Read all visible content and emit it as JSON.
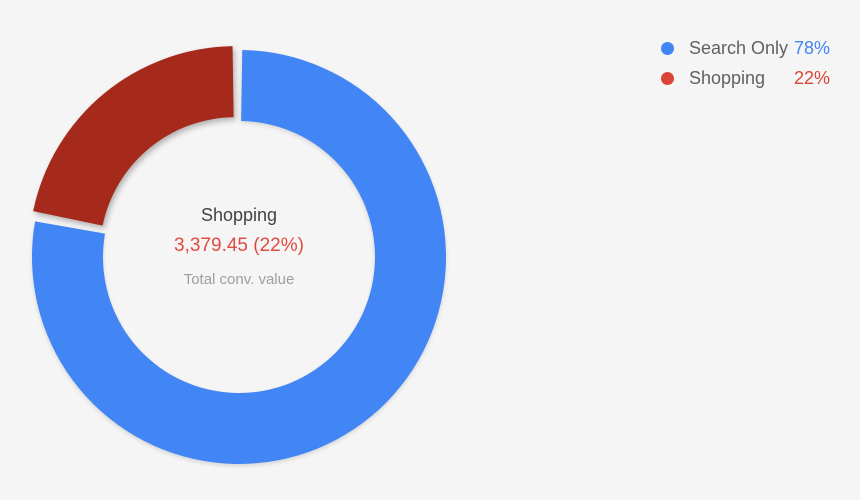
{
  "colors": {
    "background": "#F6F5F5",
    "accent_blue": "#4285F4",
    "accent_red": "#DB4437",
    "selected_slice_red": "#A52A1B",
    "center_title_text": "#424242",
    "center_value_text": "#E04A3F",
    "center_caption_text": "#9E9E9E",
    "legend_label_text": "#616161"
  },
  "chart_data": {
    "type": "pie",
    "subtype": "donut",
    "title": "",
    "legend_position": "top-right",
    "direction": "clockwise",
    "start_angle_deg": 0,
    "series": [
      {
        "name": "Search Only",
        "percent": 78,
        "percent_label": "78%",
        "color": "#4285F4",
        "legend_dot_color": "#4285F4",
        "percent_text_color": "#4285F4",
        "selected": false
      },
      {
        "name": "Shopping",
        "percent": 22,
        "percent_label": "22%",
        "value": "3,379.45",
        "color": "#A52A1B",
        "legend_dot_color": "#DB4437",
        "percent_text_color": "#DB4437",
        "selected": true
      }
    ],
    "center_label": {
      "title": "Shopping",
      "value": "3,379.45 (22%)",
      "caption": "Total conv. value"
    }
  }
}
